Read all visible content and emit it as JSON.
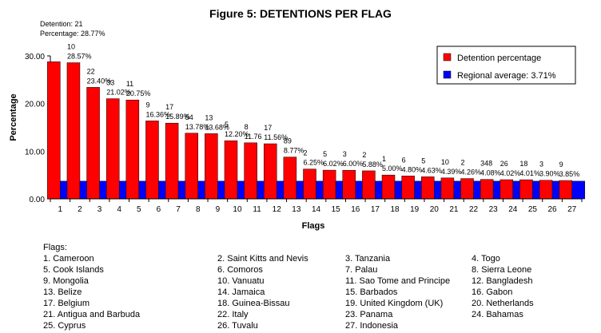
{
  "chart_data": {
    "type": "bar",
    "title": "Figure 5: DETENTIONS PER FLAG",
    "xlabel": "Flags",
    "ylabel": "Percentage",
    "ylim": [
      0,
      30
    ],
    "yticks": [
      "0.00",
      "10.00",
      "20.00",
      "30.00"
    ],
    "categories": [
      "1",
      "2",
      "3",
      "4",
      "5",
      "6",
      "7",
      "8",
      "9",
      "10",
      "11",
      "12",
      "13",
      "14",
      "15",
      "16",
      "17",
      "18",
      "19",
      "20",
      "21",
      "22",
      "23",
      "24",
      "25",
      "26",
      "27"
    ],
    "series": [
      {
        "name": "Detention percentage",
        "color": "#ff0000",
        "values": [
          28.77,
          28.57,
          23.4,
          21.02,
          20.75,
          16.36,
          15.89,
          13.78,
          13.68,
          12.2,
          11.76,
          11.56,
          8.77,
          6.25,
          6.02,
          6.0,
          5.88,
          5.0,
          4.8,
          4.63,
          4.39,
          4.26,
          4.08,
          4.02,
          4.01,
          3.9,
          3.85
        ]
      },
      {
        "name": "Regional average: 3.71%",
        "color": "#0000ff",
        "values": [
          3.71,
          3.71,
          3.71,
          3.71,
          3.71,
          3.71,
          3.71,
          3.71,
          3.71,
          3.71,
          3.71,
          3.71,
          3.71,
          3.71,
          3.71,
          3.71,
          3.71,
          3.71,
          3.71,
          3.71,
          3.71,
          3.71,
          3.71,
          3.71,
          3.71,
          3.71,
          3.71
        ]
      }
    ],
    "annotations": [
      {
        "count": "Detention: 21",
        "pct": "Percentage: 28.77%"
      },
      {
        "count": "10",
        "pct": "28.57%"
      },
      {
        "count": "22",
        "pct": "23.40%"
      },
      {
        "count": "33",
        "pct": "21.02%"
      },
      {
        "count": "11",
        "pct": "20.75%"
      },
      {
        "count": "9",
        "pct": "16.36%"
      },
      {
        "count": "17",
        "pct": "15.89%"
      },
      {
        "count": "54",
        "pct": "13.78%"
      },
      {
        "count": "13",
        "pct": "13.68%"
      },
      {
        "count": "5",
        "pct": "12.20%"
      },
      {
        "count": "8",
        "pct": "11.76"
      },
      {
        "count": "17",
        "pct": "11.56%"
      },
      {
        "count": "89",
        "pct": "8.77%"
      },
      {
        "count": "2",
        "pct": "6.25%"
      },
      {
        "count": "5",
        "pct": "6.02%"
      },
      {
        "count": "3",
        "pct": "6.00%"
      },
      {
        "count": "2",
        "pct": "5.88%"
      },
      {
        "count": "1",
        "pct": "5.00%"
      },
      {
        "count": "6",
        "pct": "4.80%"
      },
      {
        "count": "5",
        "pct": "4.63%"
      },
      {
        "count": "10",
        "pct": "4.39%"
      },
      {
        "count": "2",
        "pct": "4.26%"
      },
      {
        "count": "348",
        "pct": "4.08%"
      },
      {
        "count": "26",
        "pct": "4.02%"
      },
      {
        "count": "18",
        "pct": "4.01%"
      },
      {
        "count": "3",
        "pct": "3.90%"
      },
      {
        "count": "9",
        "pct": "3.85%"
      }
    ],
    "legend_position": "top-right",
    "grid": false
  },
  "flags": {
    "heading": "Flags:",
    "items": [
      "1.   Cameroon",
      "2.   Saint Kitts and Nevis",
      "3.   Tanzania",
      "4.   Togo",
      "5.   Cook Islands",
      "6.   Comoros",
      "7.   Palau",
      "8.   Sierra Leone",
      "9.   Mongolia",
      "10. Vanuatu",
      "11. Sao Tome and Principe",
      "12. Bangladesh",
      "13. Belize",
      "14. Jamaica",
      "15. Barbados",
      "16. Gabon",
      "17. Belgium",
      "18. Guinea-Bissau",
      "19. United Kingdom (UK)",
      "20. Netherlands",
      "21. Antigua and Barbuda",
      "22. Italy",
      "23. Panama",
      "24. Bahamas",
      "25. Cyprus",
      "26. Tuvalu",
      "27. Indonesia"
    ]
  }
}
